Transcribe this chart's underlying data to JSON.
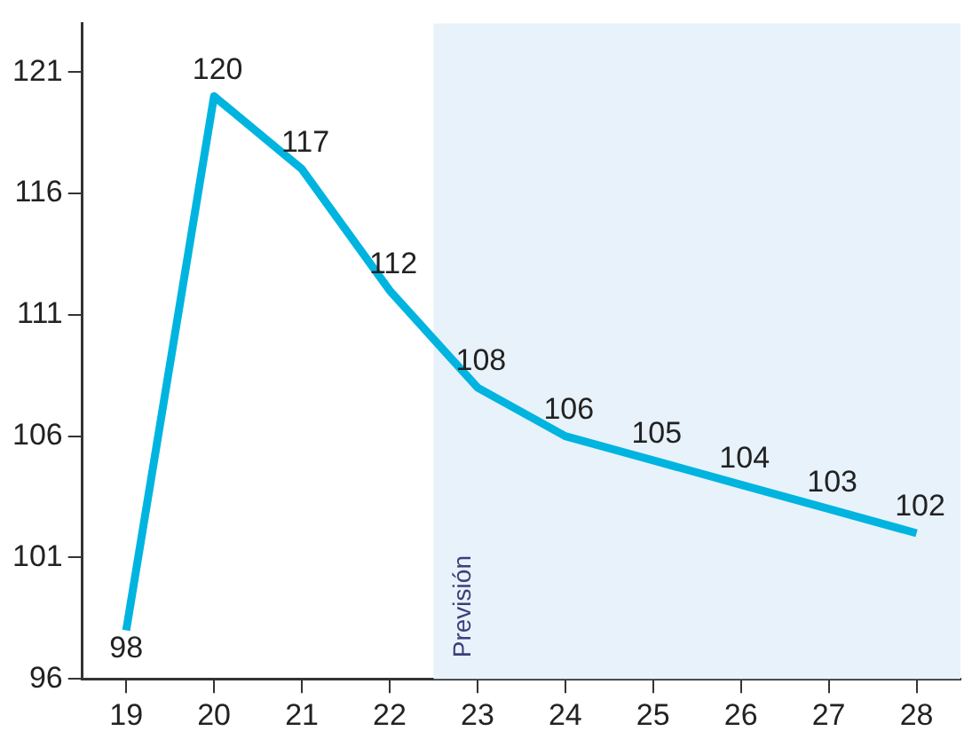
{
  "chart_data": {
    "type": "line",
    "x": [
      19,
      20,
      21,
      22,
      23,
      24,
      25,
      26,
      27,
      28
    ],
    "series": [
      {
        "color": "#00b4e0",
        "values": [
          98,
          120,
          117,
          112,
          108,
          106,
          105,
          104,
          103,
          102
        ]
      }
    ],
    "xlim": [
      18.5,
      28.5
    ],
    "xticks": [
      19,
      20,
      21,
      22,
      23,
      24,
      25,
      26,
      27,
      28
    ],
    "ylim": [
      96,
      123
    ],
    "yticks": [
      96,
      101,
      106,
      111,
      116,
      121
    ],
    "bands": [
      {
        "axis": "x",
        "from": 22.5,
        "to": 28.5,
        "label": "Previsión",
        "color": "#e8f2fb"
      }
    ],
    "data_labels": true,
    "grid": false,
    "legend": false,
    "marker": "none",
    "line_style": "solid"
  }
}
